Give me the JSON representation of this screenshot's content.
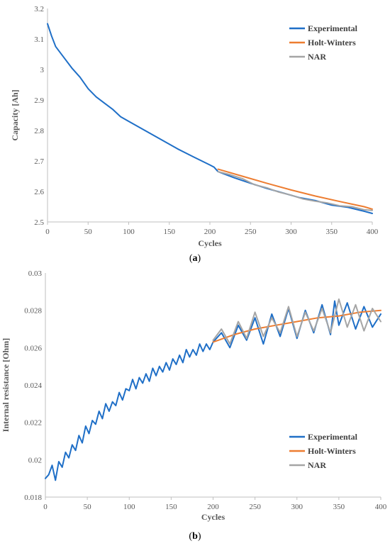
{
  "chart_data": [
    {
      "type": "line",
      "panel": "a",
      "caption_open": "(",
      "caption_letter": "a",
      "caption_close": ")",
      "xlabel": "Cycles",
      "ylabel": "Capacity [Ah]",
      "xlim": [
        0,
        400
      ],
      "ylim": [
        2.5,
        3.2
      ],
      "xticks": [
        0,
        50,
        100,
        150,
        200,
        250,
        300,
        350,
        400
      ],
      "yticks": [
        2.5,
        2.6,
        2.7,
        2.8,
        2.9,
        3,
        3.1,
        3.2
      ],
      "grid": false,
      "legend_position": "top-right",
      "series": [
        {
          "name": "Experimental",
          "color": "#1f6fc7",
          "x": [
            0,
            5,
            10,
            20,
            30,
            40,
            50,
            60,
            70,
            80,
            90,
            100,
            120,
            140,
            160,
            180,
            200,
            205,
            210,
            230,
            250,
            270,
            290,
            310,
            330,
            350,
            370,
            390,
            400
          ],
          "y": [
            3.15,
            3.11,
            3.075,
            3.04,
            3.005,
            2.975,
            2.937,
            2.91,
            2.89,
            2.87,
            2.845,
            2.83,
            2.8,
            2.77,
            2.74,
            2.713,
            2.687,
            2.68,
            2.665,
            2.645,
            2.627,
            2.61,
            2.595,
            2.58,
            2.57,
            2.555,
            2.548,
            2.535,
            2.528
          ]
        },
        {
          "name": "Holt-Winters",
          "color": "#ed7d31",
          "x": [
            210,
            240,
            270,
            300,
            330,
            360,
            390,
            400
          ],
          "y": [
            2.673,
            2.65,
            2.627,
            2.605,
            2.585,
            2.567,
            2.55,
            2.542
          ]
        },
        {
          "name": "NAR",
          "color": "#a5a5a5",
          "x": [
            210,
            225,
            240,
            255,
            270,
            285,
            300,
            315,
            330,
            345,
            360,
            375,
            390,
            400
          ],
          "y": [
            2.665,
            2.655,
            2.642,
            2.622,
            2.612,
            2.598,
            2.588,
            2.575,
            2.568,
            2.562,
            2.553,
            2.55,
            2.54,
            2.538
          ]
        }
      ]
    },
    {
      "type": "line",
      "panel": "b",
      "caption_open": "(",
      "caption_letter": "b",
      "caption_close": ")",
      "xlabel": "Cycles",
      "ylabel": "Internal resistance [Ohm]",
      "xlim": [
        0,
        400
      ],
      "ylim": [
        0.018,
        0.03
      ],
      "xticks": [
        0,
        50,
        100,
        150,
        200,
        250,
        300,
        350,
        400
      ],
      "yticks": [
        0.018,
        0.02,
        0.022,
        0.024,
        0.026,
        0.028,
        0.03
      ],
      "grid": false,
      "legend_position": "bottom-right",
      "series": [
        {
          "name": "Experimental",
          "color": "#1f6fc7",
          "x": [
            0,
            4,
            8,
            12,
            16,
            20,
            24,
            28,
            32,
            36,
            40,
            44,
            48,
            52,
            56,
            60,
            64,
            68,
            72,
            76,
            80,
            84,
            88,
            92,
            96,
            100,
            104,
            108,
            112,
            116,
            120,
            124,
            128,
            132,
            136,
            140,
            144,
            148,
            152,
            156,
            160,
            164,
            168,
            172,
            176,
            180,
            184,
            188,
            192,
            196,
            200,
            210,
            220,
            230,
            240,
            250,
            260,
            270,
            280,
            290,
            300,
            310,
            320,
            330,
            340,
            345,
            350,
            360,
            370,
            380,
            390,
            400
          ],
          "y": [
            0.019,
            0.0192,
            0.0197,
            0.0189,
            0.0199,
            0.0196,
            0.0204,
            0.0201,
            0.0208,
            0.0205,
            0.0213,
            0.0209,
            0.0218,
            0.0214,
            0.0221,
            0.0219,
            0.0226,
            0.0222,
            0.023,
            0.0226,
            0.0231,
            0.0229,
            0.0236,
            0.0232,
            0.0238,
            0.0237,
            0.0243,
            0.0238,
            0.0244,
            0.0241,
            0.0246,
            0.0242,
            0.0249,
            0.0245,
            0.025,
            0.0247,
            0.0252,
            0.0248,
            0.0254,
            0.0251,
            0.0256,
            0.0252,
            0.0259,
            0.0255,
            0.0259,
            0.0256,
            0.0262,
            0.0258,
            0.0262,
            0.0259,
            0.0263,
            0.0268,
            0.026,
            0.0272,
            0.0264,
            0.0276,
            0.0262,
            0.0278,
            0.0266,
            0.0281,
            0.0265,
            0.028,
            0.0268,
            0.0283,
            0.0267,
            0.0285,
            0.0272,
            0.0284,
            0.027,
            0.0282,
            0.0271,
            0.0278
          ]
        },
        {
          "name": "Holt-Winters",
          "color": "#ed7d31",
          "x": [
            200,
            225,
            250,
            275,
            300,
            325,
            350,
            375,
            400
          ],
          "y": [
            0.0263,
            0.0267,
            0.027,
            0.0272,
            0.0274,
            0.0276,
            0.0277,
            0.0279,
            0.028
          ]
        },
        {
          "name": "NAR",
          "color": "#a5a5a5",
          "x": [
            200,
            210,
            220,
            230,
            240,
            250,
            260,
            270,
            280,
            290,
            300,
            310,
            320,
            330,
            340,
            350,
            360,
            370,
            380,
            390,
            400
          ],
          "y": [
            0.0264,
            0.027,
            0.0262,
            0.0274,
            0.0265,
            0.0279,
            0.0266,
            0.0276,
            0.0268,
            0.0282,
            0.0266,
            0.0279,
            0.0269,
            0.0281,
            0.0268,
            0.0286,
            0.0271,
            0.0283,
            0.0269,
            0.0281,
            0.0274
          ]
        }
      ]
    }
  ]
}
